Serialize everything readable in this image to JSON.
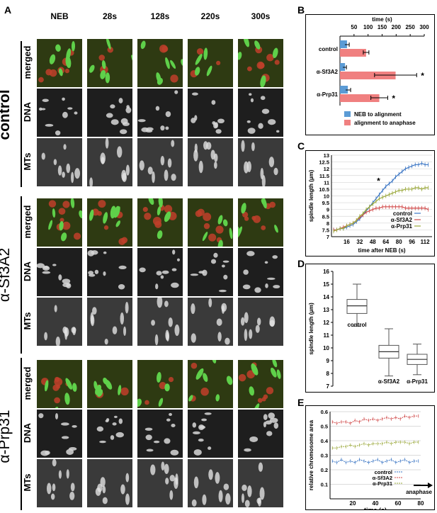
{
  "panel_letters": {
    "a": "A",
    "b": "B",
    "c": "C",
    "d": "D",
    "e": "E"
  },
  "columns": [
    "NEB",
    "28s",
    "128s",
    "220s",
    "300s"
  ],
  "groups": [
    {
      "label": "control",
      "rows": [
        "merged",
        "DNA",
        "MTs"
      ]
    },
    {
      "label": "α-Sf3A2",
      "rows": [
        "merged",
        "DNA",
        "MTs"
      ]
    },
    {
      "label": "α-Prp31",
      "rows": [
        "merged",
        "DNA",
        "MTs"
      ]
    }
  ],
  "chart_data": [
    {
      "type": "bar",
      "stacked": true,
      "orientation": "horizontal",
      "xlabel": "time (s)",
      "xlim": [
        0,
        300
      ],
      "xticks": [
        50,
        100,
        150,
        200,
        250,
        300
      ],
      "categories": [
        "control",
        "α-Sf3A2",
        "α-Prp31"
      ],
      "series": [
        {
          "name": "NEB to alignment",
          "color": "#5b9bd5",
          "values": [
            25,
            18,
            28
          ],
          "errors": [
            8,
            5,
            10
          ]
        },
        {
          "name": "alignment to anaphase",
          "color": "#f08080",
          "values": [
            93,
            198,
            140
          ],
          "errors": [
            10,
            75,
            30
          ]
        }
      ],
      "annotations": [
        "",
        "*",
        "*"
      ]
    },
    {
      "type": "line",
      "xlabel": "time after NEB (s)",
      "ylabel": "spindle length (µm)",
      "xticks": [
        16,
        32,
        48,
        64,
        80,
        96,
        112
      ],
      "ylim": [
        7,
        13
      ],
      "yticks": [
        7,
        7.5,
        8,
        8.5,
        9,
        9.5,
        10,
        10.5,
        11,
        11.5,
        12,
        12.5,
        13
      ],
      "x": [
        0,
        4,
        8,
        12,
        16,
        20,
        24,
        28,
        32,
        36,
        40,
        44,
        48,
        52,
        56,
        60,
        64,
        68,
        72,
        76,
        80,
        84,
        88,
        92,
        96,
        100,
        104,
        108,
        112,
        116
      ],
      "series": [
        {
          "name": "control",
          "color": "#3a75c4",
          "values": [
            7.5,
            7.5,
            7.6,
            7.6,
            7.7,
            7.8,
            7.9,
            8.1,
            8.3,
            8.6,
            8.9,
            9.2,
            9.5,
            9.8,
            10.1,
            10.4,
            10.7,
            10.9,
            11.1,
            11.4,
            11.6,
            11.8,
            12.0,
            12.1,
            12.2,
            12.3,
            12.3,
            12.4,
            12.3,
            12.3
          ]
        },
        {
          "name": "α-Sf3A2",
          "color": "#d04848",
          "values": [
            7.5,
            7.5,
            7.6,
            7.7,
            7.8,
            7.9,
            8.0,
            8.2,
            8.4,
            8.6,
            8.8,
            8.9,
            9.0,
            9.1,
            9.1,
            9.2,
            9.2,
            9.2,
            9.2,
            9.2,
            9.2,
            9.2,
            9.1,
            9.1,
            9.1,
            9.1,
            9.1,
            9.1,
            9.1,
            9.0
          ]
        },
        {
          "name": "α-Prp31",
          "color": "#9aa83a",
          "values": [
            7.4,
            7.5,
            7.6,
            7.6,
            7.8,
            7.9,
            8.0,
            8.2,
            8.5,
            8.7,
            9.0,
            9.2,
            9.4,
            9.6,
            9.8,
            9.9,
            10.0,
            10.1,
            10.2,
            10.3,
            10.4,
            10.4,
            10.5,
            10.5,
            10.5,
            10.6,
            10.6,
            10.5,
            10.6,
            10.6
          ]
        }
      ],
      "annotations": [
        "*"
      ]
    },
    {
      "type": "box",
      "ylabel": "spindle length (µm)",
      "ylim": [
        7,
        16
      ],
      "yticks": [
        7,
        8,
        9,
        10,
        11,
        12,
        13,
        14,
        15,
        16
      ],
      "categories": [
        "control",
        "α-Sf3A2",
        "α-Prp31"
      ],
      "boxes": [
        {
          "min": 11.7,
          "q1": 12.7,
          "median": 13.3,
          "q3": 13.8,
          "max": 15.0
        },
        {
          "min": 7.8,
          "q1": 9.2,
          "median": 9.7,
          "q3": 10.2,
          "max": 11.5
        },
        {
          "min": 7.9,
          "q1": 8.7,
          "median": 9.1,
          "q3": 9.5,
          "max": 10.3
        }
      ]
    },
    {
      "type": "line",
      "xlabel": "time (s)",
      "ylabel": "relative chromosome area",
      "xlim": [
        0,
        80
      ],
      "xticks": [
        20,
        40,
        60,
        80
      ],
      "ylim": [
        0,
        0.6
      ],
      "yticks": [
        0.1,
        0.2,
        0.3,
        0.4,
        0.5,
        0.6
      ],
      "x": [
        2,
        6,
        10,
        14,
        18,
        22,
        26,
        30,
        34,
        38,
        42,
        46,
        50,
        54,
        58,
        62,
        66,
        70,
        74,
        78
      ],
      "series": [
        {
          "name": "control",
          "color": "#3a75c4",
          "values": [
            0.26,
            0.25,
            0.27,
            0.25,
            0.26,
            0.25,
            0.27,
            0.26,
            0.25,
            0.26,
            0.27,
            0.25,
            0.26,
            0.27,
            0.25,
            0.26,
            0.27,
            0.25,
            0.26,
            0.26
          ]
        },
        {
          "name": "α-Sf3A2",
          "color": "#d04848",
          "values": [
            0.53,
            0.52,
            0.53,
            0.53,
            0.52,
            0.54,
            0.53,
            0.55,
            0.54,
            0.55,
            0.54,
            0.55,
            0.56,
            0.55,
            0.56,
            0.55,
            0.57,
            0.56,
            0.57,
            0.57
          ]
        },
        {
          "name": "α-Prp31",
          "color": "#9aa83a",
          "values": [
            0.35,
            0.35,
            0.36,
            0.36,
            0.37,
            0.36,
            0.37,
            0.38,
            0.37,
            0.38,
            0.38,
            0.38,
            0.39,
            0.38,
            0.39,
            0.39,
            0.39,
            0.38,
            0.39,
            0.39
          ]
        }
      ],
      "arrow_label": "anaphase"
    }
  ]
}
